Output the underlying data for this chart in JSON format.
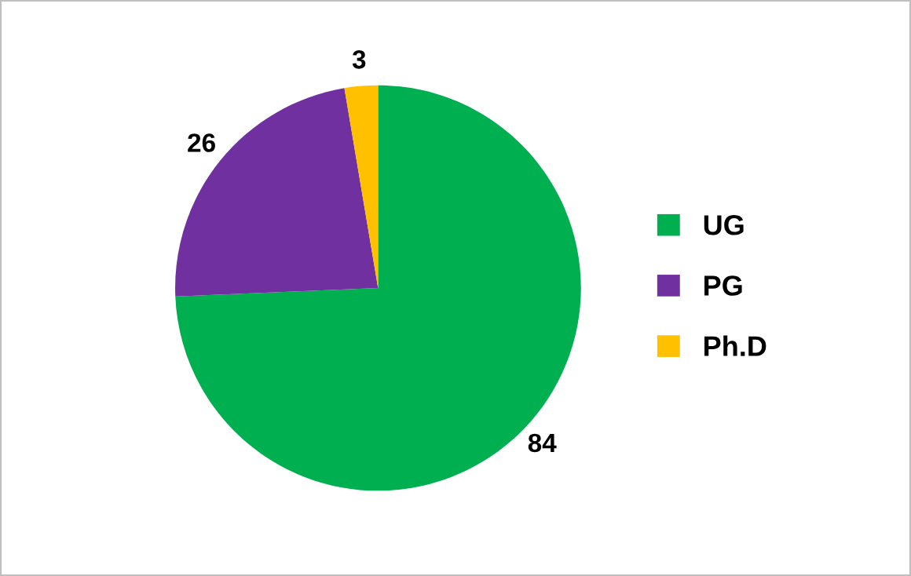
{
  "chart_data": {
    "type": "pie",
    "categories": [
      "UG",
      "PG",
      "Ph.D"
    ],
    "values": [
      84,
      26,
      3
    ],
    "colors": [
      "#00b050",
      "#7030a0",
      "#ffc000"
    ],
    "data_labels": true,
    "legend": "right"
  }
}
